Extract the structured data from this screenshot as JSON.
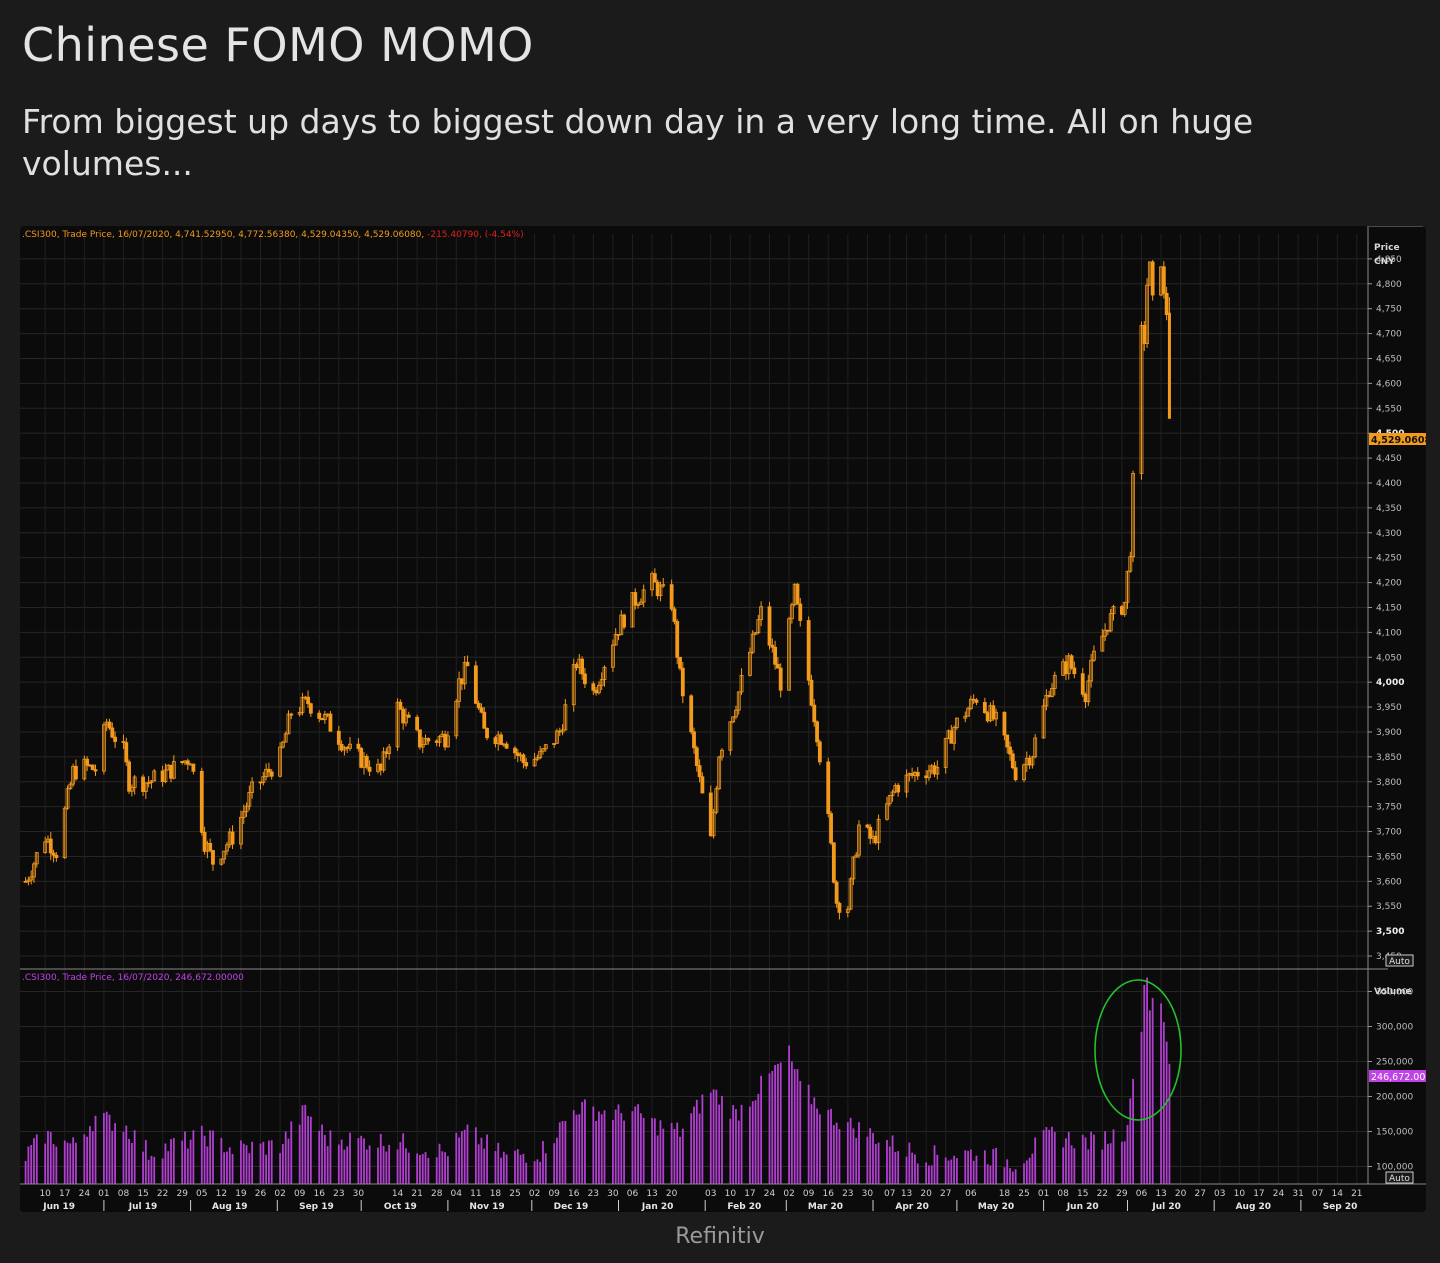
{
  "header": {
    "title": "Chinese FOMO MOMO",
    "subtitle": "From biggest up days to biggest down day in a very long time. All on huge volumes..."
  },
  "footer": {
    "source": "Refinitiv"
  },
  "colors": {
    "candle": "#f39a1d",
    "volume": "#b03fd0",
    "highlight_circle": "#22c22a",
    "price_legend": "#f39a1d",
    "price_legend_change": "#e0231d",
    "volume_legend": "#c043e6"
  },
  "chart_data": [
    {
      "type": "candlestick",
      "legend": {
        "prefix": ".CSI300, Trade Price,  16/07/2020, 4,741.52950, 4,772.56380, 4,529.04350, 4,529.06080, ",
        "change": "-215.40790, (-4.54%)"
      },
      "axis_title": [
        "Price",
        "CNY"
      ],
      "ylim": [
        3430,
        4900
      ],
      "yticks": [
        "3,450",
        "3,500",
        "3,550",
        "3,600",
        "3,650",
        "3,700",
        "3,750",
        "3,800",
        "3,850",
        "3,900",
        "3,950",
        "4,000",
        "4,050",
        "4,100",
        "4,150",
        "4,200",
        "4,250",
        "4,300",
        "4,350",
        "4,400",
        "4,450",
        "4,500",
        "4,550",
        "4,600",
        "4,650",
        "4,700",
        "4,750",
        "4,800",
        "4,850"
      ],
      "bold_yticks": [
        "3,500",
        "4,000",
        "4,500"
      ],
      "last_value_label": "4,529.0608",
      "scale_button": "Auto",
      "series_close": [
        {
          "date": "2019-06-03",
          "value": 3600
        },
        {
          "date": "2019-06-10",
          "value": 3690
        },
        {
          "date": "2019-06-14",
          "value": 3660
        },
        {
          "date": "2019-06-20",
          "value": 3820
        },
        {
          "date": "2019-06-24",
          "value": 3830
        },
        {
          "date": "2019-06-28",
          "value": 3825
        },
        {
          "date": "2019-07-02",
          "value": 3920
        },
        {
          "date": "2019-07-08",
          "value": 3860
        },
        {
          "date": "2019-07-10",
          "value": 3800
        },
        {
          "date": "2019-07-17",
          "value": 3800
        },
        {
          "date": "2019-07-24",
          "value": 3820
        },
        {
          "date": "2019-08-01",
          "value": 3850
        },
        {
          "date": "2019-08-06",
          "value": 3680
        },
        {
          "date": "2019-08-09",
          "value": 3640
        },
        {
          "date": "2019-08-16",
          "value": 3690
        },
        {
          "date": "2019-08-23",
          "value": 3780
        },
        {
          "date": "2019-09-02",
          "value": 3850
        },
        {
          "date": "2019-09-06",
          "value": 3940
        },
        {
          "date": "2019-09-12",
          "value": 3960
        },
        {
          "date": "2019-09-19",
          "value": 3920
        },
        {
          "date": "2019-09-27",
          "value": 3860
        },
        {
          "date": "2019-10-08",
          "value": 3820
        },
        {
          "date": "2019-10-14",
          "value": 3950
        },
        {
          "date": "2019-10-22",
          "value": 3880
        },
        {
          "date": "2019-10-31",
          "value": 3890
        },
        {
          "date": "2019-11-05",
          "value": 4000
        },
        {
          "date": "2019-11-08",
          "value": 4030
        },
        {
          "date": "2019-11-14",
          "value": 3900
        },
        {
          "date": "2019-11-21",
          "value": 3890
        },
        {
          "date": "2019-11-28",
          "value": 3840
        },
        {
          "date": "2019-12-04",
          "value": 3850
        },
        {
          "date": "2019-12-11",
          "value": 3900
        },
        {
          "date": "2019-12-17",
          "value": 4040
        },
        {
          "date": "2019-12-23",
          "value": 3980
        },
        {
          "date": "2019-12-31",
          "value": 4100
        },
        {
          "date": "2020-01-06",
          "value": 4160
        },
        {
          "date": "2020-01-13",
          "value": 4200
        },
        {
          "date": "2020-01-20",
          "value": 4160
        },
        {
          "date": "2020-01-23",
          "value": 4010
        },
        {
          "date": "2020-02-03",
          "value": 3680
        },
        {
          "date": "2020-02-06",
          "value": 3860
        },
        {
          "date": "2020-02-12",
          "value": 3960
        },
        {
          "date": "2020-02-17",
          "value": 4060
        },
        {
          "date": "2020-02-21",
          "value": 4140
        },
        {
          "date": "2020-02-28",
          "value": 4000
        },
        {
          "date": "2020-03-04",
          "value": 4180
        },
        {
          "date": "2020-03-06",
          "value": 4110
        },
        {
          "date": "2020-03-12",
          "value": 3900
        },
        {
          "date": "2020-03-16",
          "value": 3720
        },
        {
          "date": "2020-03-19",
          "value": 3560
        },
        {
          "date": "2020-03-23",
          "value": 3550
        },
        {
          "date": "2020-03-27",
          "value": 3710
        },
        {
          "date": "2020-04-01",
          "value": 3680
        },
        {
          "date": "2020-04-09",
          "value": 3790
        },
        {
          "date": "2020-04-17",
          "value": 3820
        },
        {
          "date": "2020-04-24",
          "value": 3830
        },
        {
          "date": "2020-04-30",
          "value": 3910
        },
        {
          "date": "2020-05-08",
          "value": 3970
        },
        {
          "date": "2020-05-15",
          "value": 3920
        },
        {
          "date": "2020-05-22",
          "value": 3820
        },
        {
          "date": "2020-05-28",
          "value": 3860
        },
        {
          "date": "2020-06-03",
          "value": 3990
        },
        {
          "date": "2020-06-10",
          "value": 4040
        },
        {
          "date": "2020-06-16",
          "value": 3980
        },
        {
          "date": "2020-06-19",
          "value": 4050
        },
        {
          "date": "2020-06-24",
          "value": 4120
        },
        {
          "date": "2020-06-30",
          "value": 4160
        },
        {
          "date": "2020-07-02",
          "value": 4270
        },
        {
          "date": "2020-07-03",
          "value": 4400
        },
        {
          "date": "2020-07-06",
          "value": 4700
        },
        {
          "date": "2020-07-07",
          "value": 4690
        },
        {
          "date": "2020-07-08",
          "value": 4800
        },
        {
          "date": "2020-07-09",
          "value": 4830
        },
        {
          "date": "2020-07-10",
          "value": 4760
        },
        {
          "date": "2020-07-13",
          "value": 4850
        },
        {
          "date": "2020-07-14",
          "value": 4770
        },
        {
          "date": "2020-07-15",
          "value": 4744
        },
        {
          "date": "2020-07-16",
          "value": 4529
        }
      ]
    },
    {
      "type": "bar",
      "legend": ".CSI300, Trade Price,  16/07/2020, 246,672.00000",
      "axis_title": "Volume",
      "ylim": [
        75000,
        375000
      ],
      "yticks": [
        "100,000",
        "150,000",
        "200,000",
        "250,000",
        "300,000",
        "350,000"
      ],
      "last_value_label": "246,672.00",
      "scale_button": "Auto",
      "annotation": "green ellipse around July 2020 volume spike",
      "series": [
        {
          "date": "2019-06-03",
          "value": 115000
        },
        {
          "date": "2019-06-10",
          "value": 145000
        },
        {
          "date": "2019-06-20",
          "value": 130000
        },
        {
          "date": "2019-06-28",
          "value": 170000
        },
        {
          "date": "2019-07-08",
          "value": 160000
        },
        {
          "date": "2019-07-17",
          "value": 120000
        },
        {
          "date": "2019-08-06",
          "value": 145000
        },
        {
          "date": "2019-08-16",
          "value": 125000
        },
        {
          "date": "2019-09-02",
          "value": 130000
        },
        {
          "date": "2019-09-11",
          "value": 180000
        },
        {
          "date": "2019-09-19",
          "value": 140000
        },
        {
          "date": "2019-10-14",
          "value": 135000
        },
        {
          "date": "2019-10-31",
          "value": 120000
        },
        {
          "date": "2019-11-08",
          "value": 150000
        },
        {
          "date": "2019-11-21",
          "value": 115000
        },
        {
          "date": "2019-12-04",
          "value": 120000
        },
        {
          "date": "2019-12-17",
          "value": 185000
        },
        {
          "date": "2019-12-31",
          "value": 175000
        },
        {
          "date": "2020-01-06",
          "value": 180000
        },
        {
          "date": "2020-01-14",
          "value": 160000
        },
        {
          "date": "2020-01-23",
          "value": 150000
        },
        {
          "date": "2020-02-03",
          "value": 210000
        },
        {
          "date": "2020-02-12",
          "value": 175000
        },
        {
          "date": "2020-02-21",
          "value": 215000
        },
        {
          "date": "2020-03-02",
          "value": 260000
        },
        {
          "date": "2020-03-06",
          "value": 215000
        },
        {
          "date": "2020-03-12",
          "value": 190000
        },
        {
          "date": "2020-03-16",
          "value": 175000
        },
        {
          "date": "2020-03-23",
          "value": 160000
        },
        {
          "date": "2020-04-01",
          "value": 145000
        },
        {
          "date": "2020-04-09",
          "value": 130000
        },
        {
          "date": "2020-04-20",
          "value": 115000
        },
        {
          "date": "2020-05-08",
          "value": 120000
        },
        {
          "date": "2020-05-22",
          "value": 105000
        },
        {
          "date": "2020-06-03",
          "value": 145000
        },
        {
          "date": "2020-06-10",
          "value": 140000
        },
        {
          "date": "2020-06-19",
          "value": 135000
        },
        {
          "date": "2020-06-30",
          "value": 150000
        },
        {
          "date": "2020-07-02",
          "value": 185000
        },
        {
          "date": "2020-07-03",
          "value": 240000
        },
        {
          "date": "2020-07-06",
          "value": 290000
        },
        {
          "date": "2020-07-07",
          "value": 370000
        },
        {
          "date": "2020-07-08",
          "value": 370000
        },
        {
          "date": "2020-07-09",
          "value": 330000
        },
        {
          "date": "2020-07-10",
          "value": 350000
        },
        {
          "date": "2020-07-13",
          "value": 320000
        },
        {
          "date": "2020-07-14",
          "value": 300000
        },
        {
          "date": "2020-07-15",
          "value": 280000
        },
        {
          "date": "2020-07-16",
          "value": 246672
        }
      ]
    }
  ],
  "x_axis": {
    "months": [
      {
        "date": "2019-06-15",
        "label": "Jun 19"
      },
      {
        "date": "2019-07-15",
        "label": "Jul 19"
      },
      {
        "date": "2019-08-15",
        "label": "Aug 19"
      },
      {
        "date": "2019-09-15",
        "label": "Sep 19"
      },
      {
        "date": "2019-10-15",
        "label": "Oct 19"
      },
      {
        "date": "2019-11-15",
        "label": "Nov 19"
      },
      {
        "date": "2019-12-15",
        "label": "Dec 19"
      },
      {
        "date": "2020-01-15",
        "label": "Jan 20"
      },
      {
        "date": "2020-02-15",
        "label": "Feb 20"
      },
      {
        "date": "2020-03-15",
        "label": "Mar 20"
      },
      {
        "date": "2020-04-15",
        "label": "Apr 20"
      },
      {
        "date": "2020-05-15",
        "label": "May 20"
      },
      {
        "date": "2020-06-15",
        "label": "Jun 20"
      },
      {
        "date": "2020-07-15",
        "label": "Jul 20"
      },
      {
        "date": "2020-08-15",
        "label": "Aug 20"
      },
      {
        "date": "2020-09-15",
        "label": "Sep 20"
      }
    ],
    "month_boundaries": [
      "2019-07-01",
      "2019-08-01",
      "2019-09-01",
      "2019-10-01",
      "2019-11-01",
      "2019-12-01",
      "2020-01-01",
      "2020-02-01",
      "2020-03-01",
      "2020-04-01",
      "2020-05-01",
      "2020-06-01",
      "2020-07-01",
      "2020-08-01",
      "2020-09-01"
    ],
    "days": [
      {
        "date": "2019-06-10",
        "label": "10"
      },
      {
        "date": "2019-06-17",
        "label": "17"
      },
      {
        "date": "2019-06-24",
        "label": "24"
      },
      {
        "date": "2019-07-01",
        "label": "01"
      },
      {
        "date": "2019-07-08",
        "label": "08"
      },
      {
        "date": "2019-07-15",
        "label": "15"
      },
      {
        "date": "2019-07-22",
        "label": "22"
      },
      {
        "date": "2019-07-29",
        "label": "29"
      },
      {
        "date": "2019-08-05",
        "label": "05"
      },
      {
        "date": "2019-08-12",
        "label": "12"
      },
      {
        "date": "2019-08-19",
        "label": "19"
      },
      {
        "date": "2019-08-26",
        "label": "26"
      },
      {
        "date": "2019-09-02",
        "label": "02"
      },
      {
        "date": "2019-09-09",
        "label": "09"
      },
      {
        "date": "2019-09-16",
        "label": "16"
      },
      {
        "date": "2019-09-23",
        "label": "23"
      },
      {
        "date": "2019-09-30",
        "label": "30"
      },
      {
        "date": "2019-10-14",
        "label": "14"
      },
      {
        "date": "2019-10-21",
        "label": "21"
      },
      {
        "date": "2019-10-28",
        "label": "28"
      },
      {
        "date": "2019-11-04",
        "label": "04"
      },
      {
        "date": "2019-11-11",
        "label": "11"
      },
      {
        "date": "2019-11-18",
        "label": "18"
      },
      {
        "date": "2019-11-25",
        "label": "25"
      },
      {
        "date": "2019-12-02",
        "label": "02"
      },
      {
        "date": "2019-12-09",
        "label": "09"
      },
      {
        "date": "2019-12-16",
        "label": "16"
      },
      {
        "date": "2019-12-23",
        "label": "23"
      },
      {
        "date": "2019-12-30",
        "label": "30"
      },
      {
        "date": "2020-01-06",
        "label": "06"
      },
      {
        "date": "2020-01-13",
        "label": "13"
      },
      {
        "date": "2020-01-20",
        "label": "20"
      },
      {
        "date": "2020-02-03",
        "label": "03"
      },
      {
        "date": "2020-02-10",
        "label": "10"
      },
      {
        "date": "2020-02-17",
        "label": "17"
      },
      {
        "date": "2020-02-24",
        "label": "24"
      },
      {
        "date": "2020-03-02",
        "label": "02"
      },
      {
        "date": "2020-03-09",
        "label": "09"
      },
      {
        "date": "2020-03-16",
        "label": "16"
      },
      {
        "date": "2020-03-23",
        "label": "23"
      },
      {
        "date": "2020-03-30",
        "label": "30"
      },
      {
        "date": "2020-04-07",
        "label": "07"
      },
      {
        "date": "2020-04-13",
        "label": "13"
      },
      {
        "date": "2020-04-20",
        "label": "20"
      },
      {
        "date": "2020-04-27",
        "label": "27"
      },
      {
        "date": "2020-05-06",
        "label": "06"
      },
      {
        "date": "2020-05-18",
        "label": "18"
      },
      {
        "date": "2020-05-25",
        "label": "25"
      },
      {
        "date": "2020-06-01",
        "label": "01"
      },
      {
        "date": "2020-06-08",
        "label": "08"
      },
      {
        "date": "2020-06-15",
        "label": "15"
      },
      {
        "date": "2020-06-22",
        "label": "22"
      },
      {
        "date": "2020-06-29",
        "label": "29"
      },
      {
        "date": "2020-07-06",
        "label": "06"
      },
      {
        "date": "2020-07-13",
        "label": "13"
      },
      {
        "date": "2020-07-20",
        "label": "20"
      },
      {
        "date": "2020-07-27",
        "label": "27"
      },
      {
        "date": "2020-08-03",
        "label": "03"
      },
      {
        "date": "2020-08-10",
        "label": "10"
      },
      {
        "date": "2020-08-17",
        "label": "17"
      },
      {
        "date": "2020-08-24",
        "label": "24"
      },
      {
        "date": "2020-08-31",
        "label": "31"
      },
      {
        "date": "2020-09-07",
        "label": "07"
      },
      {
        "date": "2020-09-14",
        "label": "14"
      },
      {
        "date": "2020-09-21",
        "label": "21"
      }
    ]
  }
}
